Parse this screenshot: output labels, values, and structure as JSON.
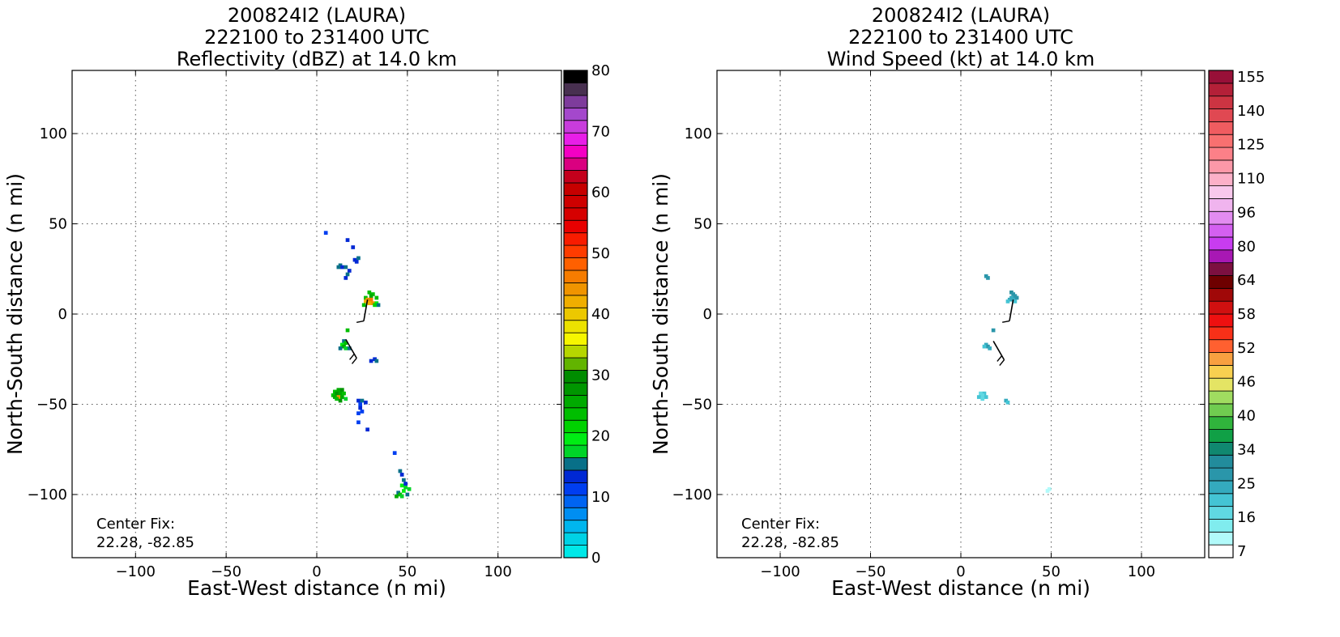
{
  "chart_data": [
    {
      "type": "heatmap",
      "title_lines": [
        "200824I2 (LAURA)",
        "222100 to 231400 UTC",
        "Reflectivity (dBZ) at 14.0 km"
      ],
      "xlabel": "East-West distance (n mi)",
      "ylabel": "North-South distance (n mi)",
      "xlim": [
        -135,
        135
      ],
      "ylim": [
        -135,
        135
      ],
      "xticks": [
        -100,
        -50,
        0,
        50,
        100
      ],
      "yticks": [
        -100,
        -50,
        0,
        50,
        100
      ],
      "xtick_labels": [
        "−100",
        "−50",
        "0",
        "50",
        "100"
      ],
      "ytick_labels": [
        "−100",
        "−50",
        "0",
        "50",
        "100"
      ],
      "grid": true,
      "center_fix": {
        "label": "Center Fix:",
        "coords": "22.28, -82.85"
      },
      "colorbar": {
        "min": 0,
        "max": 80,
        "tick_values": [
          0,
          10,
          20,
          30,
          40,
          50,
          60,
          70,
          80
        ],
        "tick_labels": [
          "0",
          "10",
          "20",
          "30",
          "40",
          "50",
          "60",
          "70",
          "80"
        ],
        "colors": [
          "#00e8e8",
          "#00d2e6",
          "#00b6ee",
          "#008ef2",
          "#0064f2",
          "#003ef0",
          "#0028d4",
          "#087088",
          "#00d428",
          "#00ec14",
          "#00d200",
          "#00be00",
          "#00aa00",
          "#009600",
          "#008c00",
          "#62b400",
          "#b6d600",
          "#f6f600",
          "#ece200",
          "#ecc800",
          "#f0ae00",
          "#f09400",
          "#f67c00",
          "#ff6000",
          "#ff3c00",
          "#f81c00",
          "#e80000",
          "#d60000",
          "#ce0000",
          "#c60000",
          "#c4001c",
          "#da0080",
          "#f400c4",
          "#e81ee8",
          "#c83cdc",
          "#a448cc",
          "#7e3c9c",
          "#483050",
          "#000000"
        ],
        "bands": [
          [
            0,
            4.5
          ],
          [
            10,
            10
          ],
          [
            20,
            17
          ],
          [
            30,
            25.5
          ],
          [
            40,
            33
          ],
          [
            50,
            48
          ],
          [
            60,
            58
          ],
          [
            70,
            70
          ],
          [
            80,
            80
          ]
        ]
      },
      "cells": [
        [
          5,
          45,
          5
        ],
        [
          17,
          41,
          6
        ],
        [
          20,
          37,
          6
        ],
        [
          21,
          30,
          6
        ],
        [
          23,
          31,
          7
        ],
        [
          22,
          29,
          6
        ],
        [
          13,
          27,
          7
        ],
        [
          14,
          26,
          6
        ],
        [
          16,
          26,
          7
        ],
        [
          12,
          26,
          7
        ],
        [
          18,
          24,
          6
        ],
        [
          17,
          22,
          7
        ],
        [
          16,
          20,
          6
        ],
        [
          29,
          12,
          11
        ],
        [
          31,
          11,
          11
        ],
        [
          30,
          10,
          12
        ],
        [
          33,
          9,
          11
        ],
        [
          27,
          9,
          11
        ],
        [
          28,
          8,
          21
        ],
        [
          30,
          8,
          22
        ],
        [
          27,
          7,
          20
        ],
        [
          31,
          6,
          21
        ],
        [
          29,
          6,
          20
        ],
        [
          26,
          5,
          11
        ],
        [
          33,
          6,
          9
        ],
        [
          34,
          5,
          7
        ],
        [
          32,
          5,
          10
        ],
        [
          17,
          -9,
          11
        ],
        [
          15,
          -15,
          7
        ],
        [
          16,
          -16,
          11
        ],
        [
          14,
          -17,
          9
        ],
        [
          15,
          -18,
          12
        ],
        [
          16,
          -19,
          8
        ],
        [
          13,
          -19,
          7
        ],
        [
          18,
          -19,
          7
        ],
        [
          32,
          -25,
          6
        ],
        [
          33,
          -26,
          7
        ],
        [
          30,
          -26,
          6
        ],
        [
          12,
          -42,
          12
        ],
        [
          14,
          -42,
          13
        ],
        [
          10,
          -43,
          11
        ],
        [
          13,
          -44,
          12
        ],
        [
          11,
          -44,
          13
        ],
        [
          15,
          -44,
          11
        ],
        [
          9,
          -45,
          11
        ],
        [
          12,
          -46,
          21
        ],
        [
          10,
          -46,
          12
        ],
        [
          14,
          -46,
          12
        ],
        [
          11,
          -47,
          11
        ],
        [
          13,
          -48,
          13
        ],
        [
          16,
          -47,
          8
        ],
        [
          23,
          -48,
          6
        ],
        [
          25,
          -48,
          7
        ],
        [
          27,
          -49,
          6
        ],
        [
          24,
          -50,
          5
        ],
        [
          24,
          -52,
          6
        ],
        [
          25,
          -54,
          5
        ],
        [
          23,
          -55,
          5
        ],
        [
          23,
          -60,
          5
        ],
        [
          28,
          -64,
          6
        ],
        [
          43,
          -77,
          5
        ],
        [
          46,
          -87,
          7
        ],
        [
          47,
          -89,
          6
        ],
        [
          48,
          -92,
          7
        ],
        [
          47,
          -95,
          9
        ],
        [
          49,
          -96,
          8
        ],
        [
          51,
          -97,
          8
        ],
        [
          48,
          -98,
          9
        ],
        [
          45,
          -99,
          7
        ],
        [
          46,
          -100,
          11
        ],
        [
          44,
          -101,
          12
        ],
        [
          47,
          -101,
          8
        ],
        [
          50,
          -100,
          7
        ],
        [
          49,
          -94,
          6
        ]
      ],
      "barbs": [
        {
          "x": 28,
          "y": 8,
          "angle": 190,
          "length": 12,
          "flags": 1
        },
        {
          "x": 16,
          "y": -14,
          "angle": 150,
          "length": 12,
          "flags": 2
        }
      ]
    },
    {
      "type": "heatmap",
      "title_lines": [
        "200824I2 (LAURA)",
        "222100 to 231400 UTC",
        "Wind Speed (kt) at 14.0 km"
      ],
      "xlabel": "East-West distance (n mi)",
      "ylabel": "North-South distance (n mi)",
      "xlim": [
        -135,
        135
      ],
      "ylim": [
        -135,
        135
      ],
      "xticks": [
        -100,
        -50,
        0,
        50,
        100
      ],
      "yticks": [
        -100,
        -50,
        0,
        50,
        100
      ],
      "xtick_labels": [
        "−100",
        "−50",
        "0",
        "50",
        "100"
      ],
      "ytick_labels": [
        "−100",
        "−50",
        "0",
        "50",
        "100"
      ],
      "grid": true,
      "center_fix": {
        "label": "Center Fix:",
        "coords": "22.28, -82.85"
      },
      "colorbar": {
        "min": 7,
        "max": 155,
        "tick_values": [
          7,
          16,
          25,
          34,
          40,
          46,
          52,
          58,
          64,
          80,
          96,
          110,
          125,
          140,
          155
        ],
        "tick_labels": [
          "7",
          "16",
          "25",
          "34",
          "40",
          "46",
          "52",
          "58",
          "64",
          "80",
          "96",
          "110",
          "125",
          "140",
          "155"
        ],
        "colors": [
          "#ffffff",
          "#b2fafa",
          "#80ecee",
          "#60d8e2",
          "#44c4d4",
          "#34aabe",
          "#2a96aa",
          "#228c9c",
          "#108870",
          "#10a046",
          "#30b43c",
          "#70cc50",
          "#a0dc60",
          "#e4e464",
          "#f8d050",
          "#f8a040",
          "#ff6030",
          "#f83018",
          "#ee1010",
          "#d01010",
          "#a00808",
          "#6e0000",
          "#7c1040",
          "#a818b4",
          "#c83cf0",
          "#d460f0",
          "#e28cf0",
          "#f0b4ee",
          "#f8c8ec",
          "#fcb0c8",
          "#fc98a8",
          "#fc8088",
          "#f87070",
          "#f05c60",
          "#e04852",
          "#cc3442",
          "#b42038",
          "#981038"
        ],
        "bands": [
          [
            7,
            0.5
          ],
          [
            16,
            3.5
          ],
          [
            25,
            6.5
          ],
          [
            34,
            9.5
          ],
          [
            40,
            11.5
          ],
          [
            46,
            13.5
          ],
          [
            52,
            15.5
          ],
          [
            58,
            17.5
          ],
          [
            64,
            19.5
          ],
          [
            80,
            22.5
          ],
          [
            96,
            25.5
          ],
          [
            110,
            28.5
          ],
          [
            125,
            31.5
          ],
          [
            140,
            34.5
          ],
          [
            155,
            37.5
          ]
        ]
      },
      "cells": [
        [
          14,
          21,
          6
        ],
        [
          15,
          20,
          6
        ],
        [
          28,
          12,
          7
        ],
        [
          29,
          11,
          6
        ],
        [
          30,
          10,
          6
        ],
        [
          28,
          9,
          5
        ],
        [
          31,
          9,
          6
        ],
        [
          27,
          8,
          5
        ],
        [
          29,
          8,
          5
        ],
        [
          30,
          7,
          4
        ],
        [
          26,
          7,
          4
        ],
        [
          18,
          -9,
          6
        ],
        [
          14,
          -17,
          5
        ],
        [
          15,
          -18,
          6
        ],
        [
          16,
          -19,
          5
        ],
        [
          13,
          -18,
          4
        ],
        [
          11,
          -44,
          3
        ],
        [
          13,
          -44,
          4
        ],
        [
          12,
          -45,
          3
        ],
        [
          14,
          -46,
          4
        ],
        [
          10,
          -46,
          4
        ],
        [
          12,
          -47,
          3
        ],
        [
          25,
          -48,
          5
        ],
        [
          26,
          -49,
          4
        ],
        [
          49,
          -97,
          1
        ],
        [
          48,
          -98,
          1
        ]
      ],
      "barbs": [
        {
          "x": 29,
          "y": 8,
          "angle": 190,
          "length": 12,
          "flags": 1
        },
        {
          "x": 18,
          "y": -15,
          "angle": 150,
          "length": 12,
          "flags": 2
        }
      ]
    }
  ]
}
